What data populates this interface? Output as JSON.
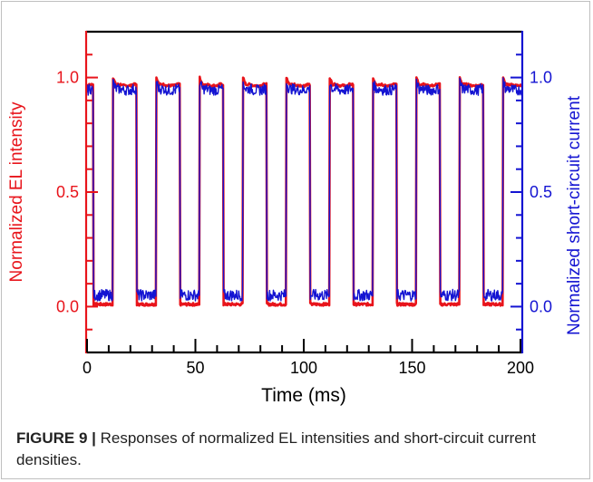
{
  "figure": {
    "label": "FIGURE 9 |",
    "caption": "Responses of normalized EL intensities and short-circuit current densities."
  },
  "chart_data": {
    "type": "line",
    "title": "",
    "xlabel": "Time (ms)",
    "ylabel_left": "Normalized EL intensity",
    "ylabel_right": "Normalized short-circuit current",
    "xlim": [
      0,
      200
    ],
    "ylim": [
      -0.2,
      1.2
    ],
    "x_ticks": [
      "0",
      "50",
      "100",
      "150",
      "200"
    ],
    "y_ticks_left": [
      "0.0",
      "0.5",
      "1.0"
    ],
    "y_ticks_right": [
      "0.0",
      "0.5",
      "1.0"
    ],
    "grid": false,
    "colors": {
      "left_axis": "#e8141b",
      "right_axis": "#1414d2",
      "el_series": "#e8141b",
      "current_series": "#1414d2",
      "top_axis": "#000000"
    },
    "pulse_period_ms": 20,
    "series": [
      {
        "id": "el",
        "axis": "left",
        "on_level": 0.97,
        "off_level": 0.01,
        "on_intervals": [
          [
            -8,
            3
          ],
          [
            12,
            23
          ],
          [
            32,
            43
          ],
          [
            52,
            63
          ],
          [
            72,
            83
          ],
          [
            92,
            103
          ],
          [
            112,
            123
          ],
          [
            132,
            143
          ],
          [
            152,
            163
          ],
          [
            172,
            183
          ],
          [
            192,
            203
          ]
        ]
      },
      {
        "id": "current",
        "axis": "right",
        "on_level": 0.95,
        "off_level": 0.05,
        "on_intervals": [
          [
            -8,
            3
          ],
          [
            12,
            23
          ],
          [
            32,
            43
          ],
          [
            52,
            63
          ],
          [
            72,
            83
          ],
          [
            92,
            103
          ],
          [
            112,
            123
          ],
          [
            132,
            143
          ],
          [
            152,
            163
          ],
          [
            172,
            183
          ],
          [
            192,
            203
          ]
        ]
      }
    ]
  }
}
